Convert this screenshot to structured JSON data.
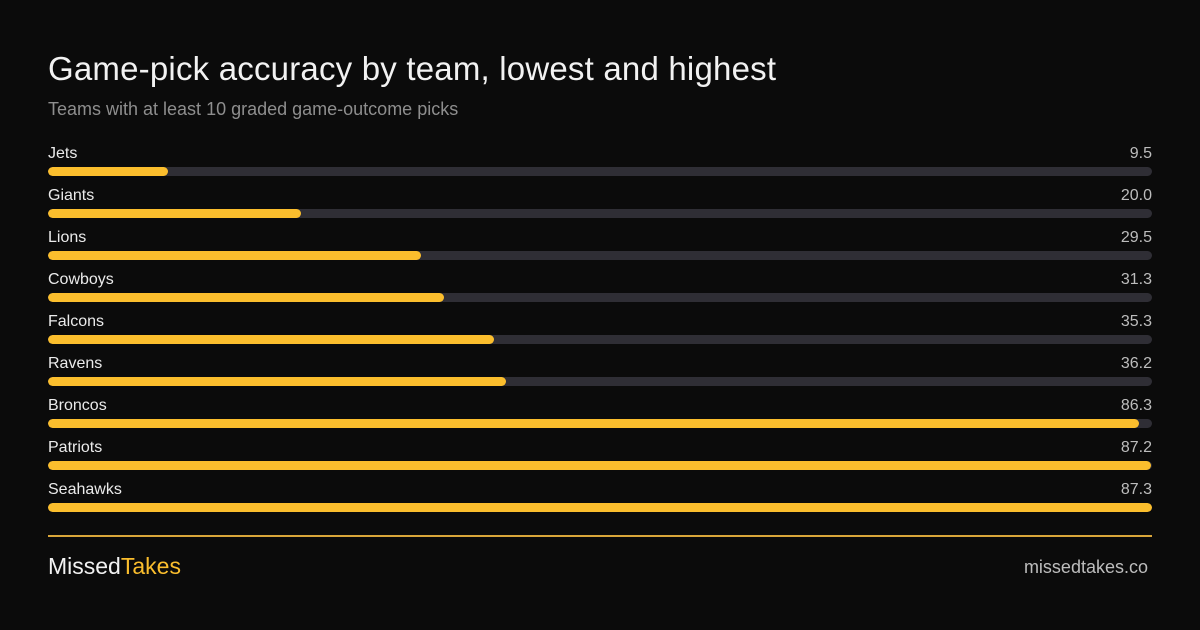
{
  "header": {
    "title": "Game-pick accuracy by team, lowest and highest",
    "subtitle": "Teams with at least 10 graded game-outcome picks"
  },
  "colors": {
    "background": "#0b0b0b",
    "bar_fill": "#fbbe2d",
    "bar_track": "#2f2e35",
    "divider": "#d9a63a"
  },
  "chart_data": {
    "type": "bar",
    "orientation": "horizontal",
    "title": "Game-pick accuracy by team, lowest and highest",
    "subtitle": "Teams with at least 10 graded game-outcome picks",
    "categories": [
      "Jets",
      "Giants",
      "Lions",
      "Cowboys",
      "Falcons",
      "Ravens",
      "Broncos",
      "Patriots",
      "Seahawks"
    ],
    "values": [
      9.5,
      20.0,
      29.5,
      31.3,
      35.3,
      36.2,
      86.3,
      87.2,
      87.3
    ],
    "value_labels": [
      "9.5",
      "20.0",
      "29.5",
      "31.3",
      "35.3",
      "36.2",
      "86.3",
      "87.2",
      "87.3"
    ],
    "xlim": [
      0,
      87.3
    ],
    "grid": false,
    "legend": "none"
  },
  "footer": {
    "brand_part1": "Missed",
    "brand_part2": "Takes",
    "site": "missedtakes.co"
  }
}
